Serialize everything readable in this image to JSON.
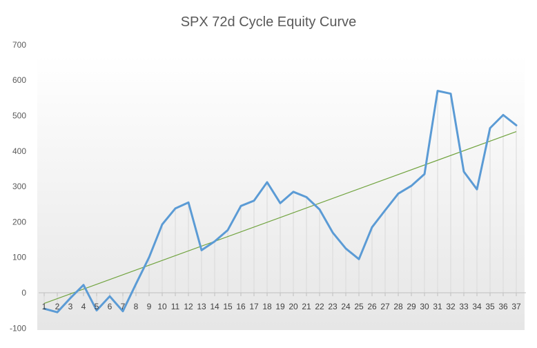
{
  "chart_data": {
    "type": "line",
    "title": "SPX 72d Cycle Equity Curve",
    "xlabel": "",
    "ylabel": "",
    "x": [
      1,
      2,
      3,
      4,
      5,
      6,
      7,
      8,
      9,
      10,
      11,
      12,
      13,
      14,
      15,
      16,
      17,
      18,
      19,
      20,
      21,
      22,
      23,
      24,
      25,
      26,
      27,
      28,
      29,
      30,
      31,
      32,
      33,
      34,
      35,
      36,
      37
    ],
    "ylim": [
      -100,
      700
    ],
    "yticks": [
      -100,
      0,
      100,
      200,
      300,
      400,
      500,
      600,
      700
    ],
    "series": [
      {
        "values": [
          -45,
          -55,
          -15,
          22,
          -50,
          -10,
          -52,
          25,
          100,
          193,
          238,
          255,
          120,
          145,
          177,
          245,
          260,
          312,
          253,
          285,
          270,
          235,
          170,
          125,
          95,
          185,
          233,
          280,
          302,
          335,
          570,
          562,
          342,
          292,
          465,
          502,
          473
        ],
        "color": "#5B9BD5"
      }
    ],
    "trendline": {
      "type": "linear",
      "start": -30,
      "end": 455,
      "color": "#70A33E"
    },
    "drop_lines": true,
    "grid": false,
    "legend": "none"
  }
}
